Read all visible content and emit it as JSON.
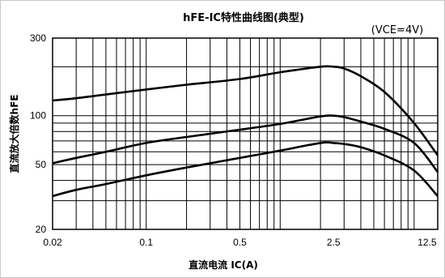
{
  "chart_data": {
    "type": "line",
    "title": "hFE-IC特性曲线图(典型)",
    "condition": "(VCE=4V)",
    "xlabel": "直流电流  IC(A)",
    "ylabel": "直流放大倍数hFE",
    "x_scale": "log",
    "y_scale": "log",
    "xlim": [
      0.02,
      15
    ],
    "ylim": [
      20,
      300
    ],
    "grid": true,
    "legend": "none",
    "line_color": "#000000",
    "x_ticks": [
      {
        "value": 0.02,
        "label": "0.02"
      },
      {
        "value": 0.1,
        "label": "0.1"
      },
      {
        "value": 0.5,
        "label": "0.5"
      },
      {
        "value": 2.5,
        "label": "2.5"
      },
      {
        "value": 12.5,
        "label": "12.5"
      }
    ],
    "y_ticks": [
      {
        "value": 20,
        "label": "20"
      },
      {
        "value": 50,
        "label": "50"
      },
      {
        "value": 100,
        "label": "100"
      },
      {
        "value": 300,
        "label": "300"
      }
    ],
    "x_gridlines": [
      0.02,
      0.03,
      0.04,
      0.05,
      0.06,
      0.07,
      0.08,
      0.09,
      0.1,
      0.2,
      0.3,
      0.4,
      0.5,
      0.6,
      0.7,
      0.8,
      0.9,
      1,
      2,
      3,
      4,
      5,
      6,
      7,
      8,
      9,
      10
    ],
    "y_gridlines": [
      20,
      30,
      40,
      50,
      60,
      70,
      80,
      90,
      100,
      200,
      300
    ],
    "series": [
      {
        "x": [
          0.02,
          0.03,
          0.05,
          0.1,
          0.2,
          0.5,
          1,
          2,
          2.5,
          3,
          4,
          6,
          10,
          15
        ],
        "y": [
          124,
          128,
          135,
          145,
          155,
          168,
          185,
          200,
          200,
          195,
          175,
          140,
          90,
          57
        ]
      },
      {
        "x": [
          0.02,
          0.03,
          0.05,
          0.1,
          0.2,
          0.5,
          1,
          2,
          2.5,
          3,
          4,
          6,
          10,
          15
        ],
        "y": [
          51,
          55,
          60,
          68,
          74,
          82,
          89,
          99,
          100,
          98,
          92,
          83,
          68,
          45
        ]
      },
      {
        "x": [
          0.02,
          0.03,
          0.05,
          0.1,
          0.2,
          0.5,
          1,
          2,
          2.5,
          3,
          4,
          6,
          10,
          15
        ],
        "y": [
          32,
          35,
          38,
          43,
          48,
          55,
          61,
          68,
          68,
          67,
          64,
          57,
          46,
          32
        ]
      }
    ]
  }
}
